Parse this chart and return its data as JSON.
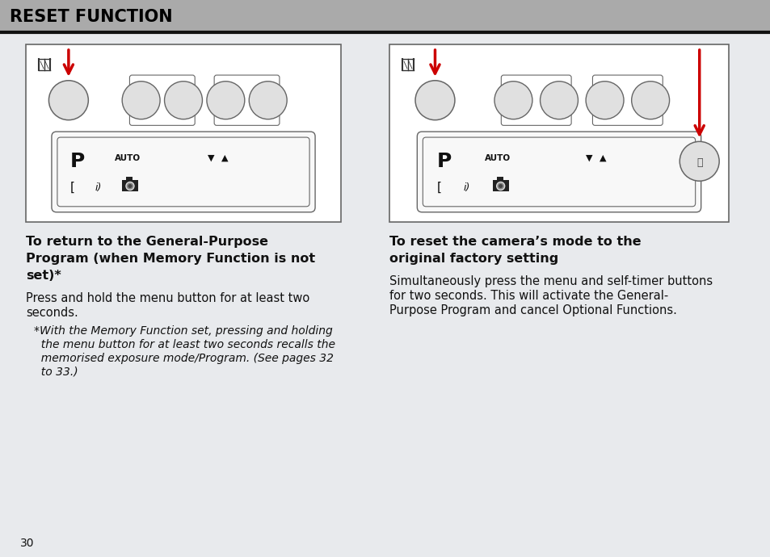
{
  "bg_color": "#e8eaed",
  "header_bg": "#aaaaaa",
  "header_text": "RESET FUNCTION",
  "header_text_color": "#000000",
  "page_number": "30",
  "left_title_bold": "To return to the General-Purpose\nProgram (when Memory Function is not\nset)*",
  "left_body": "Press and hold the menu button for at least two\nseconds.",
  "left_italic": "*With the Memory Function set, pressing and holding\n  the menu button for at least two seconds recalls the\n  memorised exposure mode/Program. (See pages 32\n  to 33.)",
  "right_title_bold": "To reset the camera’s mode to the\noriginal factory setting",
  "right_body": "Simultaneously press the menu and self-timer buttons\nfor two seconds. This will activate the General-\nPurpose Program and cancel Optional Functions.",
  "red_arrow_color": "#cc0000",
  "cam_outline": "#666666",
  "cam_bg": "#f5f5f5",
  "btn_fill": "#e0e0e0",
  "lcd_fill": "#f8f8f8",
  "text_dark": "#111111"
}
